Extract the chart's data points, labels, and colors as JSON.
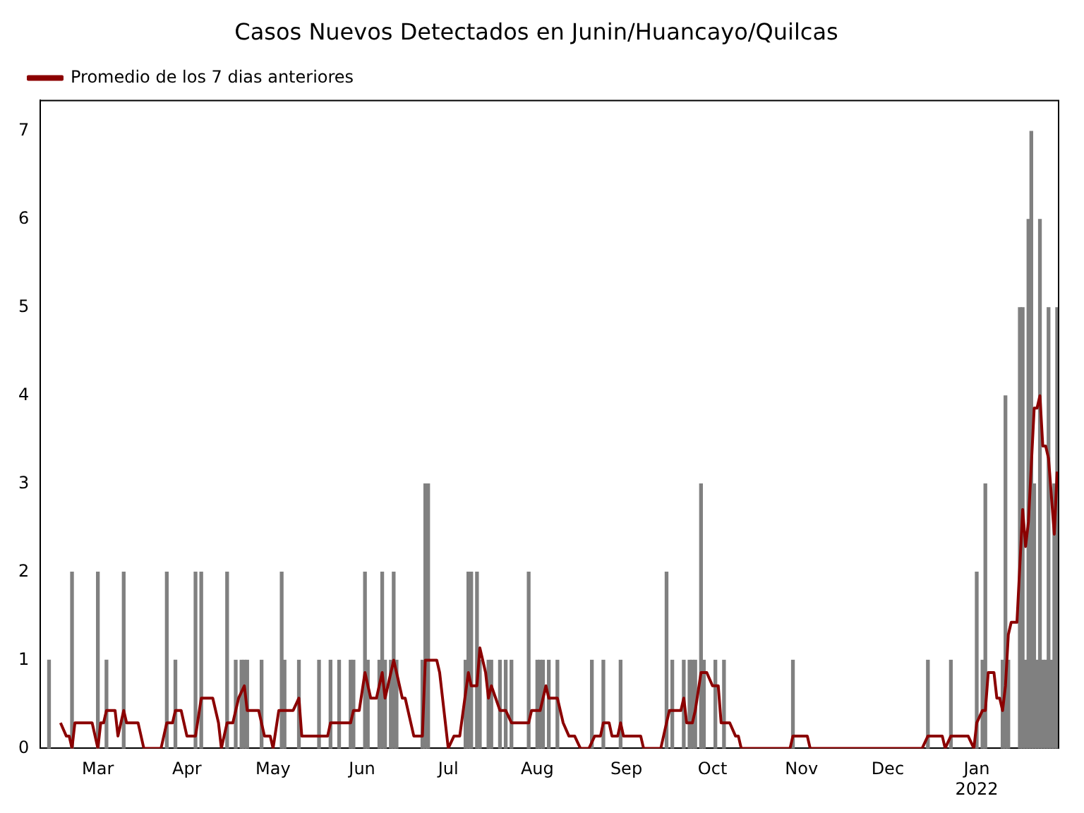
{
  "chart_data": {
    "type": "bar",
    "title": "Casos Nuevos Detectados en Junin/Huancayo/Quilcas",
    "legend": "top left",
    "grid": false,
    "xlim": [
      "2021-02-09",
      "2022-01-29T12:00"
    ],
    "xticks": [
      {
        "value": "2021-03-01",
        "label": "Mar"
      },
      {
        "value": "2021-04-01",
        "label": "Apr"
      },
      {
        "value": "2021-05-01",
        "label": "May"
      },
      {
        "value": "2021-06-01",
        "label": "Jun"
      },
      {
        "value": "2021-07-01",
        "label": "Jul"
      },
      {
        "value": "2021-08-01",
        "label": "Aug"
      },
      {
        "value": "2021-09-01",
        "label": "Sep"
      },
      {
        "value": "2021-10-01",
        "label": "Oct"
      },
      {
        "value": "2021-11-01",
        "label": "Nov"
      },
      {
        "value": "2021-12-01",
        "label": "Dec"
      },
      {
        "value": "2022-01-01",
        "label": "Jan 2022"
      }
    ],
    "ylim": [
      0,
      7.35
    ],
    "yticks": [
      0,
      1,
      2,
      3,
      4,
      5,
      6,
      7
    ],
    "series": [
      {
        "color": "#808080",
        "x": [
          "2021-02-12",
          "2021-02-20",
          "2021-03-01",
          "2021-03-04",
          "2021-03-10",
          "2021-03-25",
          "2021-03-28",
          "2021-04-04",
          "2021-04-06",
          "2021-04-15",
          "2021-04-18",
          "2021-04-20",
          "2021-04-21",
          "2021-04-22",
          "2021-04-27",
          "2021-05-04",
          "2021-05-05",
          "2021-05-10",
          "2021-05-17",
          "2021-05-21",
          "2021-05-24",
          "2021-05-28",
          "2021-05-29",
          "2021-06-02",
          "2021-06-03",
          "2021-06-07",
          "2021-06-08",
          "2021-06-09",
          "2021-06-11",
          "2021-06-12",
          "2021-06-13",
          "2021-06-22",
          "2021-06-23",
          "2021-06-24",
          "2021-07-07",
          "2021-07-08",
          "2021-07-09",
          "2021-07-11",
          "2021-07-12",
          "2021-07-15",
          "2021-07-16",
          "2021-07-19",
          "2021-07-21",
          "2021-07-23",
          "2021-07-29",
          "2021-08-01",
          "2021-08-02",
          "2021-08-03",
          "2021-08-05",
          "2021-08-08",
          "2021-08-20",
          "2021-08-24",
          "2021-08-30",
          "2021-09-15",
          "2021-09-17",
          "2021-09-21",
          "2021-09-23",
          "2021-09-24",
          "2021-09-25",
          "2021-09-27",
          "2021-09-28",
          "2021-10-02",
          "2021-10-05",
          "2021-10-29",
          "2021-12-15",
          "2021-12-23",
          "2022-01-01",
          "2022-01-03",
          "2022-01-04",
          "2022-01-10",
          "2022-01-11",
          "2022-01-12",
          "2022-01-16",
          "2022-01-17",
          "2022-01-18",
          "2022-01-19",
          "2022-01-20",
          "2022-01-21",
          "2022-01-22",
          "2022-01-23",
          "2022-01-24",
          "2022-01-25",
          "2022-01-26",
          "2022-01-27",
          "2022-01-28",
          "2022-01-29"
        ],
        "values": [
          1,
          2,
          2,
          1,
          2,
          2,
          1,
          2,
          2,
          2,
          1,
          1,
          1,
          1,
          1,
          2,
          1,
          1,
          1,
          1,
          1,
          1,
          1,
          2,
          1,
          1,
          2,
          1,
          1,
          2,
          1,
          1,
          3,
          3,
          1,
          2,
          2,
          2,
          1,
          1,
          1,
          1,
          1,
          1,
          2,
          1,
          1,
          1,
          1,
          1,
          1,
          1,
          1,
          2,
          1,
          1,
          1,
          1,
          1,
          3,
          1,
          1,
          1,
          1,
          1,
          1,
          2,
          1,
          3,
          1,
          4,
          1,
          5,
          5,
          1,
          6,
          7,
          3,
          1,
          6,
          1,
          1,
          5,
          1,
          3,
          5
        ]
      },
      {
        "type": "line",
        "name": "Promedio de los 7 dias anteriores",
        "color": "#8b0000",
        "x": [
          "2021-02-16",
          "2021-02-18",
          "2021-02-19",
          "2021-02-20",
          "2021-02-21",
          "2021-02-27",
          "2021-03-01",
          "2021-03-02",
          "2021-03-03",
          "2021-03-04",
          "2021-03-07",
          "2021-03-08",
          "2021-03-10",
          "2021-03-11",
          "2021-03-15",
          "2021-03-17",
          "2021-03-23",
          "2021-03-25",
          "2021-03-27",
          "2021-03-28",
          "2021-03-30",
          "2021-04-01",
          "2021-04-04",
          "2021-04-06",
          "2021-04-10",
          "2021-04-12",
          "2021-04-13",
          "2021-04-15",
          "2021-04-17",
          "2021-04-18",
          "2021-04-19",
          "2021-04-21",
          "2021-04-22",
          "2021-04-26",
          "2021-04-28",
          "2021-04-30",
          "2021-05-01",
          "2021-05-03",
          "2021-05-08",
          "2021-05-10",
          "2021-05-11",
          "2021-05-20",
          "2021-05-21",
          "2021-05-28",
          "2021-05-29",
          "2021-05-31",
          "2021-06-02",
          "2021-06-04",
          "2021-06-06",
          "2021-06-08",
          "2021-06-09",
          "2021-06-12",
          "2021-06-13",
          "2021-06-15",
          "2021-06-16",
          "2021-06-19",
          "2021-06-22",
          "2021-06-23",
          "2021-06-27",
          "2021-06-28",
          "2021-07-01",
          "2021-07-03",
          "2021-07-05",
          "2021-07-08",
          "2021-07-09",
          "2021-07-11",
          "2021-07-12",
          "2021-07-14",
          "2021-07-15",
          "2021-07-16",
          "2021-07-19",
          "2021-07-21",
          "2021-07-23",
          "2021-07-29",
          "2021-07-30",
          "2021-08-02",
          "2021-08-04",
          "2021-08-05",
          "2021-08-08",
          "2021-08-10",
          "2021-08-12",
          "2021-08-14",
          "2021-08-16",
          "2021-08-19",
          "2021-08-21",
          "2021-08-23",
          "2021-08-24",
          "2021-08-26",
          "2021-08-27",
          "2021-08-29",
          "2021-08-30",
          "2021-08-31",
          "2021-09-06",
          "2021-09-07",
          "2021-09-13",
          "2021-09-15",
          "2021-09-16",
          "2021-09-20",
          "2021-09-21",
          "2021-09-22",
          "2021-09-24",
          "2021-09-25",
          "2021-09-27",
          "2021-09-29",
          "2021-10-01",
          "2021-10-03",
          "2021-10-04",
          "2021-10-07",
          "2021-10-09",
          "2021-10-10",
          "2021-10-11",
          "2021-10-28",
          "2021-10-29",
          "2021-11-03",
          "2021-11-04",
          "2021-12-13",
          "2021-12-15",
          "2021-12-20",
          "2021-12-21",
          "2021-12-23",
          "2021-12-29",
          "2021-12-31",
          "2022-01-01",
          "2022-01-03",
          "2022-01-04",
          "2022-01-05",
          "2022-01-07",
          "2022-01-08",
          "2022-01-09",
          "2022-01-10",
          "2022-01-11",
          "2022-01-12",
          "2022-01-13",
          "2022-01-15",
          "2022-01-17",
          "2022-01-18",
          "2022-01-19",
          "2022-01-21",
          "2022-01-22",
          "2022-01-23",
          "2022-01-24",
          "2022-01-25",
          "2022-01-26",
          "2022-01-28",
          "2022-01-29"
        ],
        "values": [
          0.29,
          0.14,
          0.14,
          0,
          0.29,
          0.29,
          0,
          0.29,
          0.29,
          0.43,
          0.43,
          0.14,
          0.43,
          0.29,
          0.29,
          0,
          0,
          0.29,
          0.29,
          0.43,
          0.43,
          0.14,
          0.14,
          0.57,
          0.57,
          0.29,
          0,
          0.29,
          0.29,
          0.43,
          0.57,
          0.71,
          0.43,
          0.43,
          0.14,
          0.14,
          0,
          0.43,
          0.43,
          0.57,
          0.14,
          0.14,
          0.29,
          0.29,
          0.43,
          0.43,
          0.86,
          0.57,
          0.57,
          0.86,
          0.57,
          1,
          0.86,
          0.57,
          0.57,
          0.14,
          0.14,
          1,
          1,
          0.86,
          0,
          0.14,
          0.14,
          0.86,
          0.71,
          0.71,
          1.14,
          0.86,
          0.57,
          0.71,
          0.43,
          0.43,
          0.29,
          0.29,
          0.43,
          0.43,
          0.71,
          0.57,
          0.57,
          0.29,
          0.14,
          0.14,
          0,
          0,
          0.14,
          0.14,
          0.29,
          0.29,
          0.14,
          0.14,
          0.29,
          0.14,
          0.14,
          0,
          0,
          0.29,
          0.43,
          0.43,
          0.57,
          0.29,
          0.29,
          0.43,
          0.86,
          0.86,
          0.71,
          0.71,
          0.29,
          0.29,
          0.14,
          0.14,
          0,
          0,
          0.14,
          0.14,
          0,
          0,
          0.14,
          0.14,
          0,
          0.14,
          0.14,
          0,
          0.29,
          0.43,
          0.43,
          0.86,
          0.86,
          0.57,
          0.57,
          0.43,
          0.71,
          1.29,
          1.43,
          1.43,
          2.71,
          2.29,
          2.57,
          3.86,
          3.86,
          4,
          3.43,
          3.43,
          3.29,
          2.43,
          3.14
        ]
      }
    ]
  }
}
